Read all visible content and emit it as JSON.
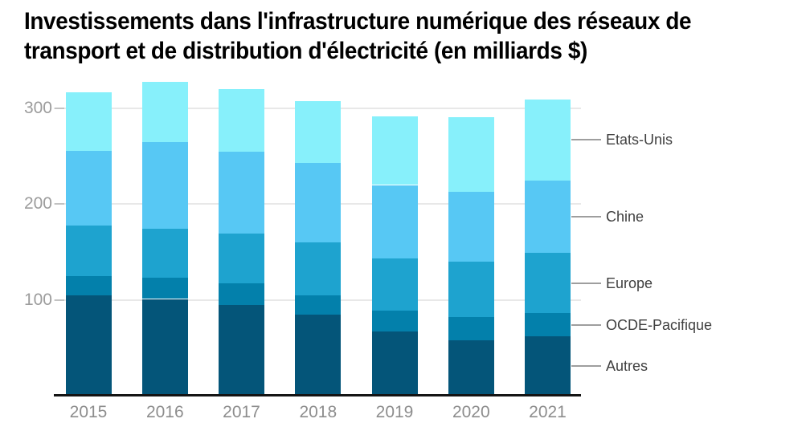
{
  "title": {
    "line1": "Investissements dans l'infrastructure numérique des réseaux de",
    "line2": "transport et de distribution d'électricité (en milliards $)"
  },
  "chart_data": {
    "type": "bar",
    "stacked": true,
    "title": "Investissements dans l'infrastructure numérique des réseaux de transport et de distribution d'électricité (en milliards $)",
    "categories": [
      "2015",
      "2016",
      "2017",
      "2018",
      "2019",
      "2020",
      "2021"
    ],
    "series": [
      {
        "name": "Autres",
        "color": "#045579",
        "values": [
          105,
          101,
          95,
          85,
          67,
          58,
          62
        ]
      },
      {
        "name": "OCDE-Pacifique",
        "color": "#0380AB",
        "values": [
          20,
          22,
          22,
          20,
          22,
          24,
          24
        ]
      },
      {
        "name": "Europe",
        "color": "#1EA3CF",
        "values": [
          53,
          51,
          52,
          55,
          54,
          58,
          63
        ]
      },
      {
        "name": "Chine",
        "color": "#57C8F4",
        "values": [
          78,
          91,
          86,
          83,
          77,
          73,
          76
        ]
      },
      {
        "name": "Etats-Unis",
        "color": "#87F0FB",
        "values": [
          61,
          63,
          65,
          65,
          72,
          78,
          84
        ]
      }
    ],
    "stack_totals": [
      317,
      328,
      320,
      308,
      292,
      291,
      309
    ],
    "xlabel": "",
    "ylabel": "",
    "y_ticks": [
      100,
      200,
      300
    ],
    "ylim": [
      0,
      335
    ],
    "grid": true,
    "legend_position": "right-of-last-bar",
    "legend_order_top_to_bottom": [
      "Etats-Unis",
      "Chine",
      "Europe",
      "OCDE-Pacifique",
      "Autres"
    ]
  },
  "colors": {
    "background": "#FFFFFF",
    "title_text": "#000000",
    "grid_line": "#E8E8E8",
    "tick_mark": "#C2C2C2",
    "y_tick_label": "#9C9C9C",
    "x_tick_label": "#8D8D8D",
    "legend_label": "#3F3F3F",
    "legend_connector": "#9E9E9E",
    "axis_line": "#141414"
  }
}
